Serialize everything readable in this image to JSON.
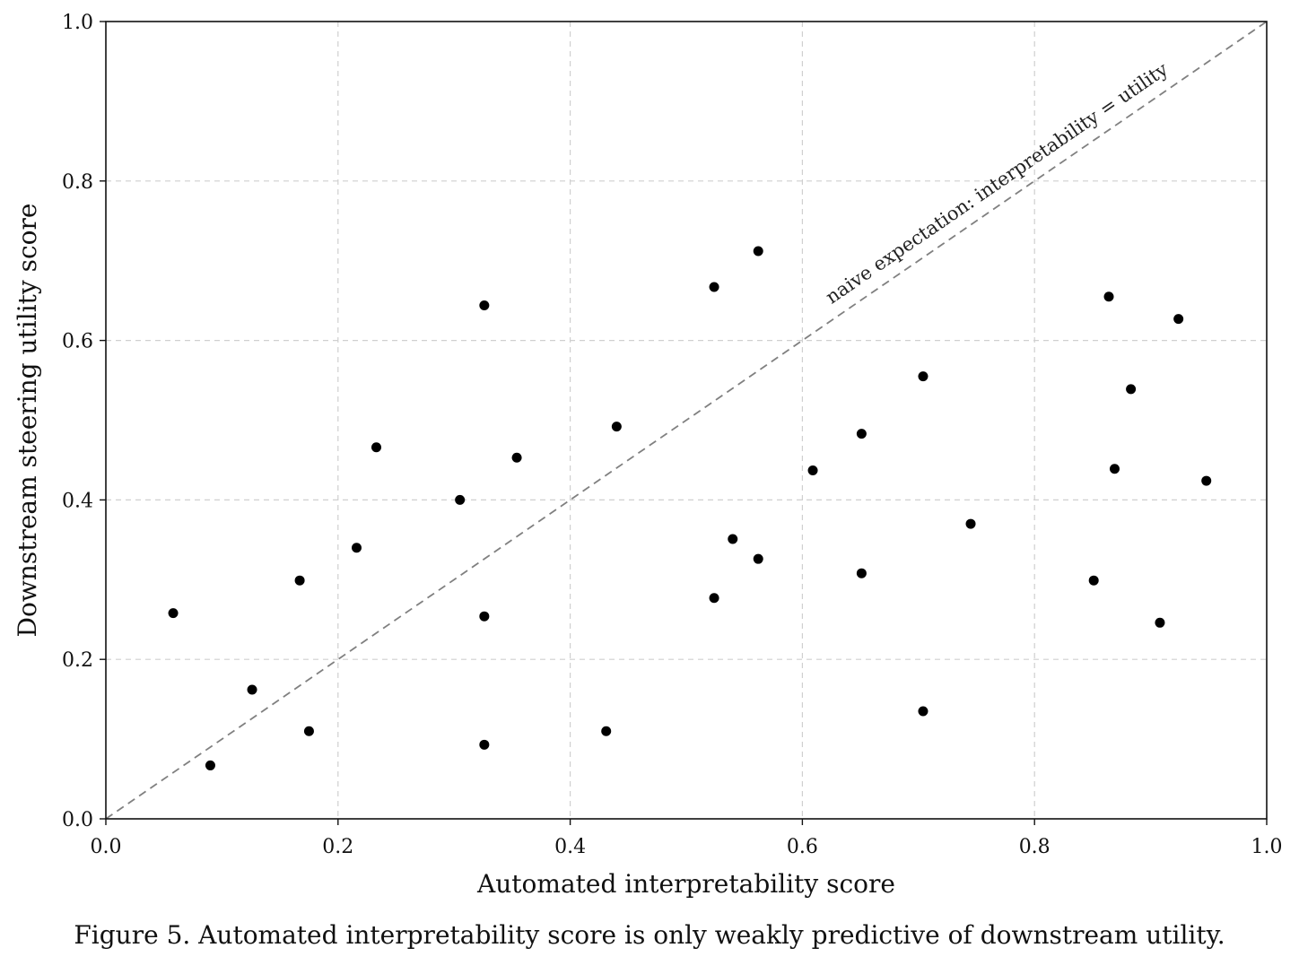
{
  "chart_data": {
    "type": "scatter",
    "title": "",
    "xlabel": "Automated interpretability score",
    "ylabel": "Downstream steering utility score",
    "xlim": [
      0.0,
      1.0
    ],
    "ylim": [
      0.0,
      1.0
    ],
    "xticks": [
      "0.0",
      "0.2",
      "0.4",
      "0.6",
      "0.8",
      "1.0"
    ],
    "yticks": [
      "0.0",
      "0.2",
      "0.4",
      "0.6",
      "0.8",
      "1.0"
    ],
    "grid": true,
    "point_color": "#000000",
    "reference_line": {
      "from": [
        0.0,
        0.0
      ],
      "to": [
        1.0,
        1.0
      ],
      "style": "dashed",
      "color": "#808080",
      "label": "naive expectation: interpretability = utility"
    },
    "points": [
      {
        "x": 0.058,
        "y": 0.258
      },
      {
        "x": 0.09,
        "y": 0.067
      },
      {
        "x": 0.126,
        "y": 0.162
      },
      {
        "x": 0.167,
        "y": 0.299
      },
      {
        "x": 0.175,
        "y": 0.11
      },
      {
        "x": 0.216,
        "y": 0.34
      },
      {
        "x": 0.233,
        "y": 0.466
      },
      {
        "x": 0.305,
        "y": 0.4
      },
      {
        "x": 0.326,
        "y": 0.644
      },
      {
        "x": 0.326,
        "y": 0.254
      },
      {
        "x": 0.326,
        "y": 0.093
      },
      {
        "x": 0.354,
        "y": 0.453
      },
      {
        "x": 0.431,
        "y": 0.11
      },
      {
        "x": 0.44,
        "y": 0.492
      },
      {
        "x": 0.524,
        "y": 0.667
      },
      {
        "x": 0.524,
        "y": 0.277
      },
      {
        "x": 0.54,
        "y": 0.351
      },
      {
        "x": 0.562,
        "y": 0.712
      },
      {
        "x": 0.562,
        "y": 0.326
      },
      {
        "x": 0.609,
        "y": 0.437
      },
      {
        "x": 0.651,
        "y": 0.483
      },
      {
        "x": 0.651,
        "y": 0.308
      },
      {
        "x": 0.704,
        "y": 0.555
      },
      {
        "x": 0.704,
        "y": 0.135
      },
      {
        "x": 0.745,
        "y": 0.37
      },
      {
        "x": 0.851,
        "y": 0.299
      },
      {
        "x": 0.864,
        "y": 0.655
      },
      {
        "x": 0.869,
        "y": 0.439
      },
      {
        "x": 0.883,
        "y": 0.539
      },
      {
        "x": 0.908,
        "y": 0.246
      },
      {
        "x": 0.924,
        "y": 0.627
      },
      {
        "x": 0.948,
        "y": 0.424
      }
    ]
  },
  "caption": "Figure 5. Automated interpretability score is only weakly predictive of downstream utility."
}
